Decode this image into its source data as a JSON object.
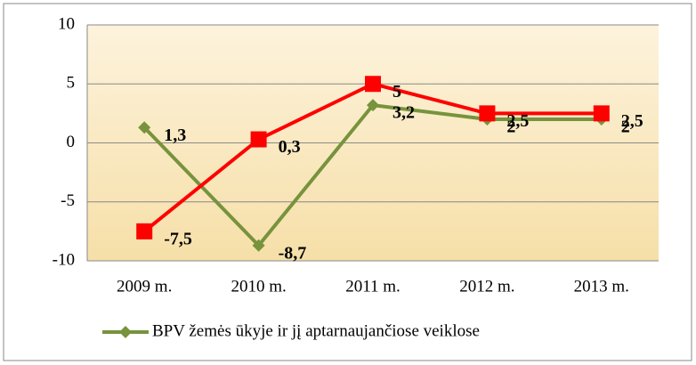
{
  "chart_data": {
    "type": "line",
    "categories": [
      "2009 m.",
      "2010 m.",
      "2011 m.",
      "2012 m.",
      "2013 m."
    ],
    "series": [
      {
        "name": "BPV žemės ūkyje ir jį aptarnaujančiose veiklose",
        "color": "#77933c",
        "marker": "diamond",
        "values": [
          1.3,
          -8.7,
          3.2,
          2,
          2
        ],
        "value_labels": [
          "1,3",
          "-8,7",
          "3,2",
          "2",
          "2"
        ]
      },
      {
        "color": "#ff0000",
        "marker": "square",
        "values": [
          -7.5,
          0.3,
          5,
          2.5,
          2.5
        ],
        "value_labels": [
          "-7,5",
          "0,3",
          "5",
          "2,5",
          "2,5"
        ]
      }
    ],
    "ylim": [
      -10,
      10
    ],
    "yticks": [
      -10,
      -5,
      0,
      5,
      10
    ],
    "grid": true,
    "legend": "bottom"
  }
}
